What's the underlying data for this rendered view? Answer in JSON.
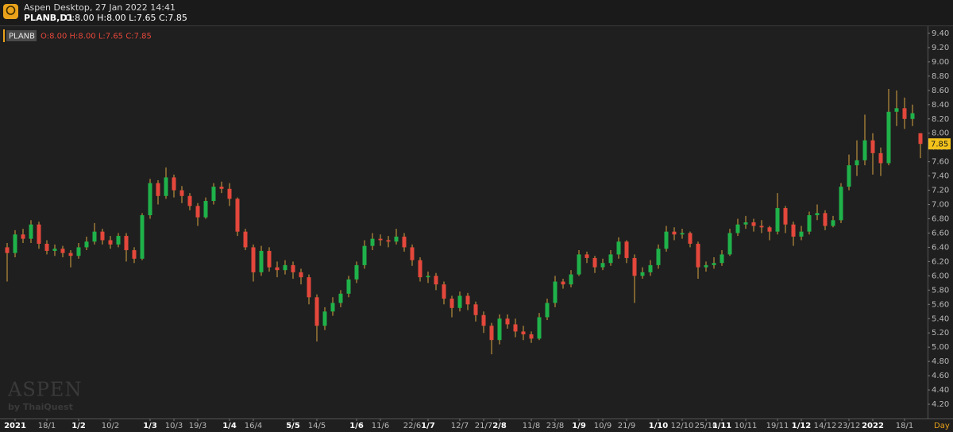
{
  "chart_data": {
    "type": "candlestick",
    "app_title": "Aspen Desktop, 27 Jan 2022 14:41",
    "symbol": "PLANB,D1",
    "ohlc_text": "O:8.00 H:8.00 L:7.65 C:7.85",
    "legend_symbol": "PLANB",
    "x_unit": "Day",
    "watermark": "ASPEN",
    "watermark_sub": "by ThaiQuest",
    "up_color": "#1fb24a",
    "down_color": "#e4473b",
    "wick_color": "#d9a441",
    "grid": false,
    "categories": [
      null,
      "2021",
      null,
      null,
      null,
      "18/1",
      null,
      null,
      null,
      "1/2",
      null,
      null,
      null,
      "10/2",
      null,
      null,
      null,
      null,
      "1/3",
      null,
      null,
      "10/3",
      null,
      null,
      "19/3",
      null,
      null,
      null,
      "1/4",
      null,
      null,
      "16/4",
      null,
      null,
      null,
      null,
      "5/5",
      null,
      null,
      "14/5",
      null,
      null,
      null,
      null,
      "1/6",
      null,
      null,
      "11/6",
      null,
      null,
      null,
      "22/6",
      null,
      "1/7",
      null,
      null,
      null,
      "12/7",
      null,
      null,
      "21/7",
      null,
      "2/8",
      null,
      null,
      null,
      "11/8",
      null,
      null,
      "23/8",
      null,
      null,
      "1/9",
      null,
      null,
      "10/9",
      null,
      null,
      "21/9",
      null,
      null,
      null,
      "1/10",
      null,
      null,
      "12/10",
      null,
      null,
      "25/10",
      null,
      "1/11",
      null,
      null,
      "10/11",
      null,
      null,
      null,
      "19/11",
      null,
      null,
      "1/12",
      null,
      null,
      "14/12",
      null,
      null,
      "23/12",
      null,
      null,
      "2022",
      null,
      null,
      null,
      "18/1",
      null,
      null
    ],
    "open": [
      6.4,
      6.32,
      6.58,
      6.52,
      6.72,
      6.45,
      6.35,
      6.38,
      6.32,
      6.28,
      6.4,
      6.48,
      6.62,
      6.5,
      6.44,
      6.56,
      6.36,
      6.24,
      6.85,
      7.3,
      7.12,
      7.38,
      7.2,
      7.12,
      6.98,
      6.82,
      7.05,
      7.25,
      7.22,
      7.08,
      6.62,
      6.4,
      6.05,
      6.35,
      6.12,
      6.08,
      6.15,
      6.05,
      5.98,
      5.7,
      5.3,
      5.5,
      5.62,
      5.75,
      5.95,
      6.15,
      6.42,
      6.52,
      6.5,
      6.48,
      6.55,
      6.4,
      6.22,
      5.98,
      6.0,
      5.88,
      5.68,
      5.55,
      5.72,
      5.6,
      5.45,
      5.3,
      5.1,
      5.4,
      5.32,
      5.22,
      5.18,
      5.12,
      5.42,
      5.62,
      5.92,
      5.88,
      6.02,
      6.3,
      6.25,
      6.12,
      6.18,
      6.3,
      6.48,
      6.25,
      6.0,
      6.05,
      6.15,
      6.38,
      6.62,
      6.58,
      6.6,
      6.45,
      6.12,
      6.15,
      6.18,
      6.3,
      6.6,
      6.72,
      6.75,
      6.7,
      6.68,
      6.62,
      6.95,
      6.72,
      6.55,
      6.62,
      6.85,
      6.88,
      6.7,
      6.78,
      7.25,
      7.55,
      7.62,
      7.9,
      7.72,
      7.58,
      8.3,
      8.35,
      8.2,
      8.0
    ],
    "high": [
      6.46,
      6.64,
      6.66,
      6.78,
      6.76,
      6.5,
      6.44,
      6.42,
      6.36,
      6.46,
      6.55,
      6.74,
      6.66,
      6.56,
      6.6,
      6.6,
      6.4,
      6.88,
      7.36,
      7.34,
      7.52,
      7.42,
      7.26,
      7.16,
      7.02,
      7.1,
      7.3,
      7.32,
      7.3,
      7.1,
      6.66,
      6.44,
      6.42,
      6.4,
      6.2,
      6.22,
      6.2,
      6.1,
      6.02,
      5.74,
      5.56,
      5.7,
      5.8,
      6.0,
      6.2,
      6.5,
      6.6,
      6.58,
      6.56,
      6.66,
      6.6,
      6.44,
      6.26,
      6.06,
      6.04,
      5.92,
      5.72,
      5.78,
      5.76,
      5.64,
      5.5,
      5.34,
      5.46,
      5.46,
      5.4,
      5.3,
      5.22,
      5.48,
      5.68,
      6.0,
      5.96,
      6.08,
      6.36,
      6.34,
      6.28,
      6.24,
      6.36,
      6.54,
      6.5,
      6.3,
      6.12,
      6.22,
      6.44,
      6.7,
      6.68,
      6.66,
      6.62,
      6.48,
      6.2,
      6.26,
      6.36,
      6.66,
      6.8,
      6.84,
      6.8,
      6.78,
      6.7,
      7.16,
      6.98,
      6.76,
      6.7,
      6.9,
      7.0,
      6.92,
      6.84,
      7.3,
      7.7,
      7.9,
      8.26,
      8.0,
      7.8,
      8.62,
      8.6,
      8.5,
      8.4,
      8.0
    ],
    "low": [
      5.92,
      6.26,
      6.46,
      6.46,
      6.38,
      6.3,
      6.28,
      6.26,
      6.12,
      6.24,
      6.36,
      6.44,
      6.44,
      6.38,
      6.4,
      6.2,
      6.18,
      6.22,
      6.8,
      7.0,
      7.08,
      7.1,
      7.02,
      6.92,
      6.7,
      6.8,
      7.0,
      7.16,
      6.98,
      6.56,
      6.36,
      5.92,
      6.0,
      6.06,
      5.98,
      6.02,
      5.96,
      5.88,
      5.6,
      5.08,
      5.24,
      5.44,
      5.56,
      5.7,
      5.9,
      6.1,
      6.36,
      6.42,
      6.4,
      6.44,
      6.34,
      6.14,
      5.92,
      5.9,
      5.8,
      5.6,
      5.42,
      5.5,
      5.52,
      5.36,
      5.2,
      4.9,
      5.04,
      5.26,
      5.14,
      5.1,
      5.06,
      5.1,
      5.38,
      5.56,
      5.82,
      5.84,
      6.0,
      6.18,
      6.04,
      6.08,
      6.14,
      6.24,
      6.18,
      5.62,
      5.96,
      6.0,
      6.1,
      6.34,
      6.5,
      6.52,
      6.4,
      5.96,
      6.06,
      6.1,
      6.14,
      6.28,
      6.56,
      6.66,
      6.62,
      6.6,
      6.5,
      6.58,
      6.6,
      6.42,
      6.5,
      6.58,
      6.78,
      6.64,
      6.68,
      6.74,
      7.2,
      7.4,
      7.55,
      7.42,
      7.4,
      7.55,
      8.1,
      8.06,
      8.1,
      7.65
    ],
    "close": [
      6.32,
      6.58,
      6.52,
      6.72,
      6.45,
      6.35,
      6.38,
      6.32,
      6.28,
      6.4,
      6.48,
      6.62,
      6.5,
      6.44,
      6.56,
      6.36,
      6.24,
      6.85,
      7.3,
      7.12,
      7.38,
      7.2,
      7.12,
      6.98,
      6.82,
      7.05,
      7.25,
      7.22,
      7.08,
      6.62,
      6.4,
      6.05,
      6.35,
      6.12,
      6.08,
      6.15,
      6.05,
      5.98,
      5.7,
      5.3,
      5.5,
      5.62,
      5.75,
      5.95,
      6.15,
      6.42,
      6.52,
      6.5,
      6.48,
      6.55,
      6.4,
      6.22,
      5.98,
      6.0,
      5.88,
      5.68,
      5.55,
      5.72,
      5.6,
      5.45,
      5.3,
      5.1,
      5.4,
      5.32,
      5.22,
      5.18,
      5.12,
      5.42,
      5.62,
      5.92,
      5.88,
      6.02,
      6.3,
      6.25,
      6.12,
      6.18,
      6.3,
      6.48,
      6.25,
      6.0,
      6.05,
      6.15,
      6.38,
      6.62,
      6.58,
      6.6,
      6.45,
      6.12,
      6.15,
      6.18,
      6.3,
      6.6,
      6.72,
      6.75,
      6.7,
      6.68,
      6.62,
      6.95,
      6.72,
      6.55,
      6.62,
      6.85,
      6.88,
      6.7,
      6.78,
      7.25,
      7.55,
      7.62,
      7.9,
      7.72,
      7.58,
      8.3,
      8.35,
      8.2,
      8.28,
      7.85
    ],
    "ylim": [
      4.0,
      9.5
    ],
    "yticks": [
      {
        "value": 4.2,
        "label": "4.20"
      },
      {
        "value": 4.4,
        "label": "4.40"
      },
      {
        "value": 4.6,
        "label": "4.60"
      },
      {
        "value": 4.8,
        "label": "4.80"
      },
      {
        "value": 5.0,
        "label": "5.00"
      },
      {
        "value": 5.2,
        "label": "5.20"
      },
      {
        "value": 5.4,
        "label": "5.40"
      },
      {
        "value": 5.6,
        "label": "5.60"
      },
      {
        "value": 5.8,
        "label": "5.80"
      },
      {
        "value": 6.0,
        "label": "6.00"
      },
      {
        "value": 6.2,
        "label": "6.20"
      },
      {
        "value": 6.4,
        "label": "6.40"
      },
      {
        "value": 6.6,
        "label": "6.60"
      },
      {
        "value": 6.8,
        "label": "6.80"
      },
      {
        "value": 7.0,
        "label": "7.00"
      },
      {
        "value": 7.2,
        "label": "7.20"
      },
      {
        "value": 7.4,
        "label": "7.40"
      },
      {
        "value": 7.6,
        "label": "7.60"
      },
      {
        "value": 7.8,
        "label": "7.80"
      },
      {
        "value": 8.0,
        "label": "8.00"
      },
      {
        "value": 8.2,
        "label": "8.20"
      },
      {
        "value": 8.4,
        "label": "8.40"
      },
      {
        "value": 8.6,
        "label": "8.60"
      },
      {
        "value": 8.8,
        "label": "8.80"
      },
      {
        "value": 9.0,
        "label": "9.00"
      },
      {
        "value": 9.2,
        "label": "9.20"
      },
      {
        "value": 9.4,
        "label": "9.40"
      }
    ]
  }
}
